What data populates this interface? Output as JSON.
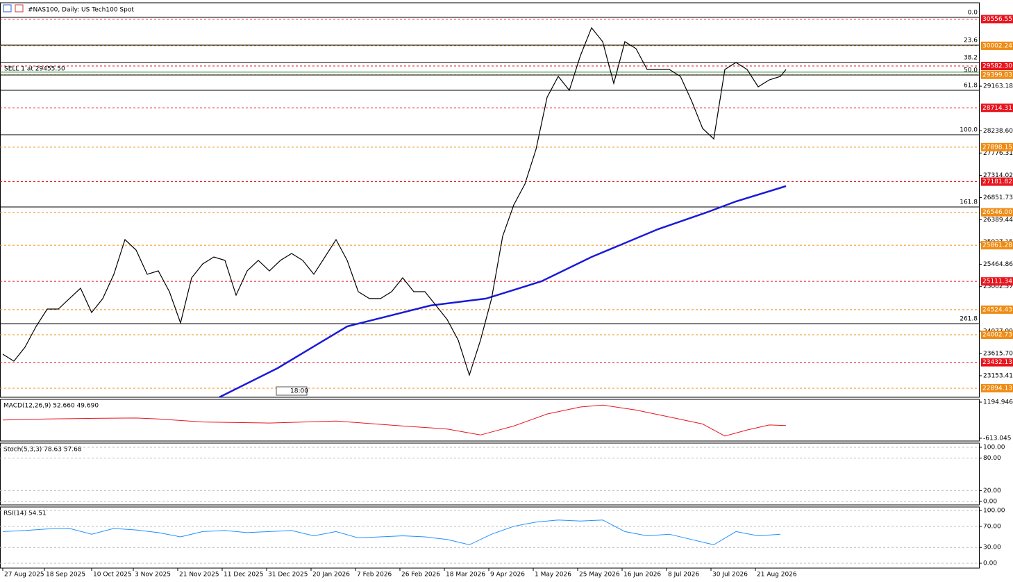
{
  "chart_data": [
    {
      "type": "line",
      "title": "#NAS100, Daily: US Tech100 Spot",
      "xlim": [
        -1,
        351.5
      ],
      "xticks": [
        {
          "value": 0,
          "label": "27 Aug 2025"
        },
        {
          "value": 15,
          "label": "18 Sep 2025"
        },
        {
          "value": 32,
          "label": "10 Oct 2025"
        },
        {
          "value": 47,
          "label": "3 Nov 2025"
        },
        {
          "value": 63,
          "label": "21 Nov 2025"
        },
        {
          "value": 79,
          "label": "11 Dec 2025"
        },
        {
          "value": 95,
          "label": "31 Dec 2025"
        },
        {
          "value": 111,
          "label": "20 Jan 2026"
        },
        {
          "value": 127,
          "label": "7 Feb 2026"
        },
        {
          "value": 143,
          "label": "26 Feb 2026"
        },
        {
          "value": 159,
          "label": "18 Mar 2026"
        },
        {
          "value": 175,
          "label": "9 Apr 2026"
        },
        {
          "value": 191,
          "label": "1 May 2026"
        },
        {
          "value": 207,
          "label": "25 May 2026"
        },
        {
          "value": 223,
          "label": "16 Jun 2026"
        },
        {
          "value": 239,
          "label": "8 Jul 2026"
        },
        {
          "value": 255,
          "label": "30 Jul 2026"
        },
        {
          "value": 271,
          "label": "21 Aug 2026"
        }
      ],
      "ylim": [
        22706,
        30895
      ],
      "yticks": [
        29163.18,
        {
          "value": 28238.6,
          "label": "28238.60"
        },
        27776.31,
        27314.02,
        26851.73,
        26389.44,
        25927.15,
        25464.86,
        25002.57,
        24077.99,
        {
          "value": 23615.7,
          "label": "23615.70"
        },
        23153.41
      ],
      "x": [
        0,
        4,
        8,
        12,
        16,
        20,
        24,
        28,
        32,
        36,
        40,
        44,
        48,
        52,
        56,
        60,
        64,
        68,
        72,
        76,
        80,
        84,
        88,
        92,
        96,
        100,
        104,
        108,
        112,
        116,
        120,
        124,
        128,
        132,
        136,
        140,
        144,
        148,
        152,
        156,
        160,
        164,
        168,
        172,
        176,
        180,
        184,
        188,
        192,
        196,
        200,
        204,
        208,
        212,
        216,
        220,
        224,
        228,
        232,
        236,
        240,
        244,
        248,
        252,
        256,
        260,
        264,
        268,
        272,
        276,
        280,
        282
      ],
      "series": [
        {
          "color": "#000000",
          "values": [
            23600,
            23456,
            23745,
            24177,
            24537,
            24537,
            24754,
            24970,
            24465,
            24754,
            25259,
            25979,
            25763,
            25259,
            25330,
            24898,
            24249,
            25186,
            25474,
            25619,
            25547,
            24826,
            25330,
            25547,
            25330,
            25547,
            25691,
            25547,
            25259,
            25619,
            25979,
            25547,
            24898,
            24754,
            24754,
            24898,
            25186,
            24898,
            24898,
            24610,
            24321,
            23889,
            23168,
            23889,
            24754,
            26051,
            26700,
            27132,
            27853,
            28934,
            29367,
            29078,
            29800,
            30376,
            30088,
            29223,
            30088,
            29944,
            29511,
            29511,
            29511,
            29367,
            28862,
            28286,
            28069,
            29511,
            29655,
            29511,
            29151,
            29295,
            29367,
            29511
          ]
        }
      ],
      "ma": {
        "color": "#1a1adb",
        "x": [
          78,
          99,
          124,
          154,
          174,
          194,
          212,
          236,
          254,
          264,
          282
        ],
        "values": [
          22707,
          23312,
          24177,
          24610,
          24754,
          25114,
          25619,
          26196,
          26556,
          26772,
          27089
        ]
      },
      "levels": [
        {
          "value": 30556.55,
          "label": "30556.55",
          "color": "#e8141e"
        },
        {
          "value": 30002.24,
          "label": "30002.24",
          "color": "#f08c14"
        },
        {
          "value": 29582.3,
          "label": "29582.30",
          "color": "#e8141e"
        },
        {
          "value": 29399.03,
          "label": "29399.03",
          "color": "#f08c14"
        },
        {
          "value": 28714.31,
          "label": "28714.31",
          "color": "#e8141e"
        },
        {
          "value": 27898.15,
          "label": "27898.15",
          "color": "#f08c14"
        },
        {
          "value": 27181.82,
          "label": "27181.82",
          "color": "#e8141e"
        },
        {
          "value": 26546,
          "label": "26546.00",
          "color": "#f08c14"
        },
        {
          "value": 25861.28,
          "label": "25861.28",
          "color": "#f08c14"
        },
        {
          "value": 25111.34,
          "label": "25111.34",
          "color": "#e8141e"
        },
        {
          "value": 24524.43,
          "label": "24524.43",
          "color": "#f08c14"
        },
        {
          "value": 24002.73,
          "label": "24002.73",
          "color": "#f08c14"
        },
        {
          "value": 23432.13,
          "label": "23432.13",
          "color": "#e8141e"
        },
        {
          "value": 22894.13,
          "label": "22894.13",
          "color": "#f08c14"
        }
      ],
      "fib_levels": [
        {
          "label": "0.0",
          "price": 30592
        },
        {
          "label": "23.6",
          "price": 30016
        },
        {
          "label": "38.2",
          "price": 29655
        },
        {
          "label": "50.0",
          "price": 29395
        },
        {
          "label": "61.8",
          "price": 29078
        },
        {
          "label": "100.0",
          "price": 28155
        },
        {
          "label": "161.8",
          "price": 26656
        },
        {
          "label": "261.8",
          "price": 24234
        }
      ],
      "trade": {
        "label": "SELL 1 at 29455.50",
        "price": 29455.5
      },
      "annotation": "18:00"
    },
    {
      "type": "line",
      "title": "MACD(12,26,9) 52.660 49.690",
      "ylim": [
        -752,
        1334
      ],
      "yticks": [
        1194.946,
        -613.045
      ],
      "x": [
        0,
        16,
        32,
        48,
        56,
        72,
        96,
        120,
        144,
        160,
        172,
        184,
        196,
        208,
        216,
        228,
        240,
        252,
        260,
        268,
        276,
        282
      ],
      "series": [
        {
          "color": "#e8141e",
          "values": [
            300,
            350,
            380,
            400,
            350,
            200,
            150,
            250,
            0,
            -150,
            -450,
            0,
            600,
            950,
            1050,
            800,
            450,
            100,
            -500,
            -200,
            50,
            20
          ]
        }
      ]
    },
    {
      "type": "line",
      "title": "Stoch(5,3,3) 78.63 57.68",
      "ylim": [
        -6.4,
        107.7
      ],
      "yticks": [
        {
          "value": 100,
          "label": "100.00"
        },
        {
          "value": 80,
          "label": "80.00"
        },
        {
          "value": 20,
          "label": "20.00"
        },
        {
          "value": 0,
          "label": "0.00"
        }
      ]
    },
    {
      "type": "line",
      "title": "RSI(14) 54.51",
      "ylim": [
        -9.2,
        106.6
      ],
      "yticks": [
        {
          "value": 100,
          "label": "100.00"
        },
        {
          "value": 70,
          "label": "70.00"
        },
        {
          "value": 30,
          "label": "30.00"
        },
        {
          "value": 0,
          "label": "0.00"
        }
      ],
      "x": [
        0,
        8,
        16,
        24,
        32,
        40,
        48,
        56,
        64,
        72,
        80,
        88,
        96,
        104,
        112,
        120,
        128,
        136,
        144,
        152,
        160,
        168,
        176,
        184,
        192,
        200,
        208,
        216,
        224,
        232,
        240,
        248,
        256,
        264,
        272,
        280
      ],
      "series": [
        {
          "color": "#1e90ff",
          "values": [
            60,
            62,
            65,
            66,
            55,
            66,
            63,
            58,
            50,
            60,
            62,
            58,
            60,
            62,
            52,
            60,
            48,
            50,
            52,
            50,
            45,
            35,
            55,
            70,
            78,
            82,
            80,
            82,
            60,
            52,
            55,
            45,
            35,
            60,
            52,
            55
          ]
        }
      ]
    }
  ]
}
